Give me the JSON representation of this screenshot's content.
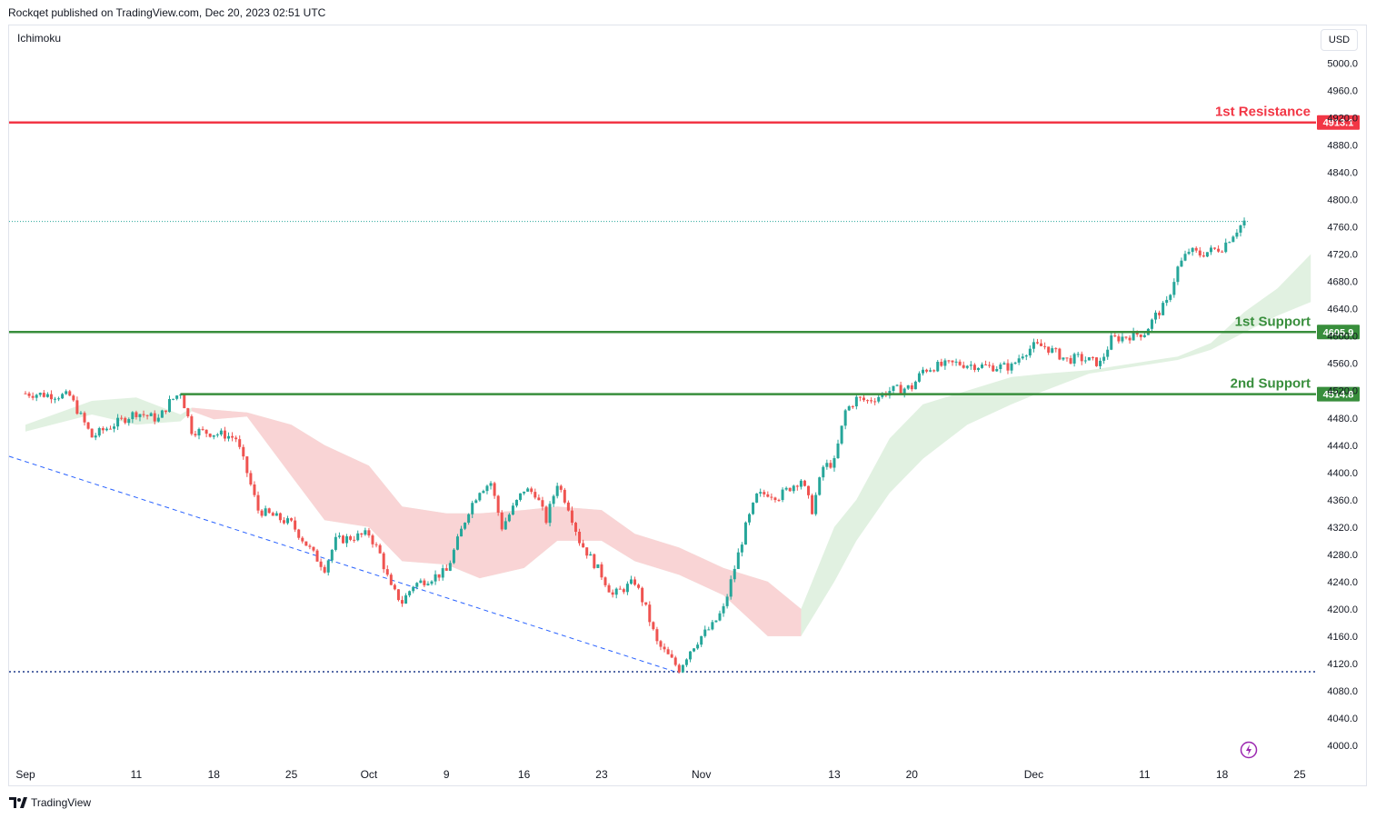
{
  "header": {
    "published": "Rockqet published on TradingView.com, Dec 20, 2023 02:51 UTC"
  },
  "indicator": {
    "name": "Ichimoku"
  },
  "currency": "USD",
  "footer": {
    "brand": "TradingView"
  },
  "icons": [
    "tradingview-logo-icon",
    "lightning-bolt-icon"
  ],
  "colors": {
    "up": "#26a69a",
    "down": "#ef5350",
    "resistance": "#f23645",
    "support": "#388e3c",
    "cloud_bull": "#c8e6c9",
    "cloud_bear": "#ffcdd2",
    "trendline": "#2962ff"
  },
  "chart_data": {
    "type": "candlestick",
    "title": "",
    "x_ticks": [
      {
        "label": "Sep",
        "date": "2023-09-01"
      },
      {
        "label": "11",
        "date": "2023-09-11"
      },
      {
        "label": "18",
        "date": "2023-09-18"
      },
      {
        "label": "25",
        "date": "2023-09-25"
      },
      {
        "label": "Oct",
        "date": "2023-10-02"
      },
      {
        "label": "9",
        "date": "2023-10-09"
      },
      {
        "label": "16",
        "date": "2023-10-16"
      },
      {
        "label": "23",
        "date": "2023-10-23"
      },
      {
        "label": "Nov",
        "date": "2023-11-01"
      },
      {
        "label": "13",
        "date": "2023-11-13"
      },
      {
        "label": "20",
        "date": "2023-11-20"
      },
      {
        "label": "Dec",
        "date": "2023-12-01"
      },
      {
        "label": "11",
        "date": "2023-12-11"
      },
      {
        "label": "18",
        "date": "2023-12-18"
      },
      {
        "label": "25",
        "date": "2023-12-25"
      }
    ],
    "y_ticks": [
      5000.0,
      4960.0,
      4920.0,
      4880.0,
      4840.0,
      4800.0,
      4760.0,
      4720.0,
      4680.0,
      4640.0,
      4600.0,
      4560.0,
      4520.0,
      4480.0,
      4440.0,
      4400.0,
      4360.0,
      4320.0,
      4280.0,
      4240.0,
      4200.0,
      4160.0,
      4120.0,
      4080.0,
      4040.0,
      4000.0
    ],
    "ylim": [
      3990,
      5020
    ],
    "levels": [
      {
        "name": "1st Resistance",
        "value": 4913.1,
        "value_label": "4913.1",
        "color": "#f23645"
      },
      {
        "name": "1st Support",
        "value": 4605.9,
        "value_label": "4605.9",
        "color": "#388e3c"
      },
      {
        "name": "2nd Support",
        "value": 4514.8,
        "value_label": "4514.8",
        "color": "#388e3c",
        "start_date": "2023-09-15"
      }
    ],
    "last_price_line": 4768,
    "low_line": 4108,
    "trendline": {
      "from": {
        "date": "2023-09-01",
        "value": 4416
      },
      "to": {
        "date": "2023-10-30",
        "value": 4106
      }
    },
    "price_path": [
      [
        "2023-09-01",
        4516
      ],
      [
        "2023-09-05",
        4512
      ],
      [
        "2023-09-07",
        4452
      ],
      [
        "2023-09-08",
        4462
      ],
      [
        "2023-09-11",
        4488
      ],
      [
        "2023-09-13",
        4478
      ],
      [
        "2023-09-14",
        4503
      ],
      [
        "2023-09-15",
        4518
      ],
      [
        "2023-09-16",
        4462
      ],
      [
        "2023-09-19",
        4455
      ],
      [
        "2023-09-20",
        4450
      ],
      [
        "2023-09-21",
        4400
      ],
      [
        "2023-09-22",
        4345
      ],
      [
        "2023-09-25",
        4325
      ],
      [
        "2023-09-27",
        4280
      ],
      [
        "2023-09-28",
        4260
      ],
      [
        "2023-09-29",
        4300
      ],
      [
        "2023-10-02",
        4310
      ],
      [
        "2023-10-03",
        4280
      ],
      [
        "2023-10-04",
        4230
      ],
      [
        "2023-10-05",
        4210
      ],
      [
        "2023-10-06",
        4235
      ],
      [
        "2023-10-09",
        4255
      ],
      [
        "2023-10-10",
        4300
      ],
      [
        "2023-10-11",
        4345
      ],
      [
        "2023-10-12",
        4375
      ],
      [
        "2023-10-13",
        4385
      ],
      [
        "2023-10-14",
        4320
      ],
      [
        "2023-10-16",
        4375
      ],
      [
        "2023-10-17",
        4370
      ],
      [
        "2023-10-18",
        4330
      ],
      [
        "2023-10-19",
        4385
      ],
      [
        "2023-10-20",
        4350
      ],
      [
        "2023-10-21",
        4300
      ],
      [
        "2023-10-23",
        4250
      ],
      [
        "2023-10-24",
        4220
      ],
      [
        "2023-10-25",
        4230
      ],
      [
        "2023-10-26",
        4240
      ],
      [
        "2023-10-27",
        4200
      ],
      [
        "2023-10-28",
        4150
      ],
      [
        "2023-10-30",
        4112
      ],
      [
        "2023-10-31",
        4140
      ],
      [
        "2023-11-01",
        4160
      ],
      [
        "2023-11-02",
        4175
      ],
      [
        "2023-11-03",
        4200
      ],
      [
        "2023-11-04",
        4260
      ],
      [
        "2023-11-05",
        4320
      ],
      [
        "2023-11-06",
        4365
      ],
      [
        "2023-11-07",
        4370
      ],
      [
        "2023-11-08",
        4365
      ],
      [
        "2023-11-09",
        4378
      ],
      [
        "2023-11-10",
        4390
      ],
      [
        "2023-11-11",
        4345
      ],
      [
        "2023-11-12",
        4408
      ],
      [
        "2023-11-13",
        4415
      ],
      [
        "2023-11-14",
        4490
      ],
      [
        "2023-11-15",
        4508
      ],
      [
        "2023-11-16",
        4505
      ],
      [
        "2023-11-17",
        4512
      ],
      [
        "2023-11-18",
        4520
      ],
      [
        "2023-11-20",
        4525
      ],
      [
        "2023-11-21",
        4550
      ],
      [
        "2023-11-22",
        4555
      ],
      [
        "2023-11-24",
        4560
      ],
      [
        "2023-11-27",
        4555
      ],
      [
        "2023-11-29",
        4555
      ],
      [
        "2023-11-30",
        4575
      ],
      [
        "2023-12-01",
        4585
      ],
      [
        "2023-12-02",
        4585
      ],
      [
        "2023-12-04",
        4565
      ],
      [
        "2023-12-05",
        4568
      ],
      [
        "2023-12-07",
        4560
      ],
      [
        "2023-12-08",
        4595
      ],
      [
        "2023-12-11",
        4605
      ],
      [
        "2023-12-12",
        4630
      ],
      [
        "2023-12-13",
        4648
      ],
      [
        "2023-12-14",
        4700
      ],
      [
        "2023-12-15",
        4725
      ],
      [
        "2023-12-16",
        4720
      ],
      [
        "2023-12-18",
        4730
      ],
      [
        "2023-12-19",
        4750
      ],
      [
        "2023-12-20",
        4768
      ]
    ],
    "cloud": [
      [
        "2023-09-01",
        4460,
        4470
      ],
      [
        "2023-09-07",
        4485,
        4505
      ],
      [
        "2023-09-11",
        4470,
        4510
      ],
      [
        "2023-09-15",
        4475,
        4485
      ],
      [
        "2023-09-16",
        4490,
        4495
      ],
      [
        "2023-09-18",
        4478,
        4492
      ],
      [
        "2023-09-21",
        4482,
        4488
      ],
      [
        "2023-09-25",
        4395,
        4470
      ],
      [
        "2023-09-28",
        4330,
        4440
      ],
      [
        "2023-10-02",
        4320,
        4410
      ],
      [
        "2023-10-05",
        4270,
        4350
      ],
      [
        "2023-10-09",
        4265,
        4340
      ],
      [
        "2023-10-12",
        4245,
        4340
      ],
      [
        "2023-10-16",
        4260,
        4345
      ],
      [
        "2023-10-19",
        4300,
        4350
      ],
      [
        "2023-10-23",
        4300,
        4345
      ],
      [
        "2023-10-26",
        4270,
        4310
      ],
      [
        "2023-10-30",
        4250,
        4290
      ],
      [
        "2023-11-03",
        4220,
        4260
      ],
      [
        "2023-11-07",
        4160,
        4240
      ],
      [
        "2023-11-10",
        4160,
        4200
      ],
      [
        "2023-11-13",
        4240,
        4320
      ],
      [
        "2023-11-15",
        4300,
        4360
      ],
      [
        "2023-11-18",
        4370,
        4450
      ],
      [
        "2023-11-21",
        4420,
        4500
      ],
      [
        "2023-11-25",
        4470,
        4520
      ],
      [
        "2023-11-29",
        4500,
        4540
      ],
      [
        "2023-12-02",
        4520,
        4545
      ],
      [
        "2023-12-06",
        4545,
        4550
      ],
      [
        "2023-12-10",
        4555,
        4560
      ],
      [
        "2023-12-14",
        4565,
        4570
      ],
      [
        "2023-12-17",
        4580,
        4590
      ],
      [
        "2023-12-20",
        4605,
        4635
      ],
      [
        "2023-12-23",
        4630,
        4670
      ],
      [
        "2023-12-26",
        4650,
        4720
      ]
    ]
  }
}
